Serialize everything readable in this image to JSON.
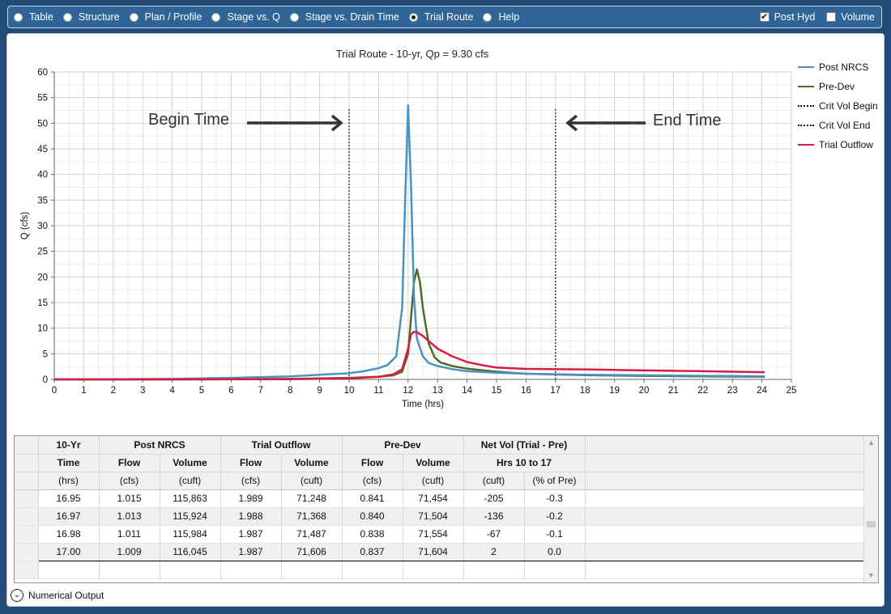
{
  "nav": {
    "radios": [
      {
        "label": "Table",
        "selected": false
      },
      {
        "label": "Structure",
        "selected": false
      },
      {
        "label": "Plan / Profile",
        "selected": false
      },
      {
        "label": "Stage vs. Q",
        "selected": false
      },
      {
        "label": "Stage vs. Drain Time",
        "selected": false
      },
      {
        "label": "Trial Route",
        "selected": true
      },
      {
        "label": "Help",
        "selected": false
      }
    ],
    "checks": [
      {
        "label": "Post Hyd",
        "checked": true
      },
      {
        "label": "Volume",
        "checked": false
      }
    ]
  },
  "annotations": {
    "begin": "Begin Time",
    "end": "End Time"
  },
  "chart_data": {
    "type": "line",
    "title": "Trial Route - 10-yr, Qp = 9.30 cfs",
    "xlabel": "Time (hrs)",
    "ylabel": "Q (cfs)",
    "xlim": [
      0,
      25
    ],
    "ylim": [
      0,
      60
    ],
    "xticks": [
      0,
      1,
      2,
      3,
      4,
      5,
      6,
      7,
      8,
      9,
      10,
      11,
      12,
      13,
      14,
      15,
      16,
      17,
      18,
      19,
      20,
      21,
      22,
      23,
      24,
      25
    ],
    "yticks": [
      0,
      5,
      10,
      15,
      20,
      25,
      30,
      35,
      40,
      45,
      50,
      55,
      60
    ],
    "grid": true,
    "legend_position": "right",
    "series": [
      {
        "name": "Post NRCS",
        "color": "#4b92c3",
        "style": "solid",
        "x": [
          0,
          2,
          4,
          6,
          8,
          9,
          10,
          10.5,
          11,
          11.3,
          11.6,
          11.8,
          11.9,
          12.0,
          12.1,
          12.2,
          12.3,
          12.5,
          12.7,
          13,
          13.5,
          14,
          15,
          16,
          18,
          20,
          22,
          24.1
        ],
        "y": [
          0,
          0.05,
          0.1,
          0.3,
          0.6,
          0.9,
          1.2,
          1.6,
          2.2,
          2.8,
          4.5,
          14,
          35,
          53.5,
          38,
          16,
          8,
          4.5,
          3.2,
          2.6,
          2.0,
          1.6,
          1.3,
          1.1,
          0.9,
          0.8,
          0.7,
          0.6
        ]
      },
      {
        "name": "Pre-Dev",
        "color": "#4f6a2a",
        "style": "solid",
        "x": [
          0,
          4,
          8,
          10,
          11,
          11.5,
          11.8,
          12.0,
          12.1,
          12.2,
          12.3,
          12.4,
          12.5,
          12.7,
          12.9,
          13.1,
          13.5,
          14,
          15,
          16,
          18,
          20,
          22,
          24.1
        ],
        "y": [
          0,
          0,
          0.1,
          0.3,
          0.5,
          0.8,
          1.5,
          5,
          12,
          19,
          21.5,
          19,
          14,
          7,
          4.3,
          3.3,
          2.6,
          2.1,
          1.5,
          1.1,
          0.84,
          0.7,
          0.6,
          0.5
        ]
      },
      {
        "name": "Crit Vol Begin",
        "color": "#111111",
        "style": "dotted",
        "x": [
          10,
          10
        ],
        "y": [
          0,
          53
        ]
      },
      {
        "name": "Crit Vol End",
        "color": "#111111",
        "style": "dotted",
        "x": [
          17,
          17
        ],
        "y": [
          0,
          53
        ]
      },
      {
        "name": "Trial Outflow",
        "color": "#d81b43",
        "style": "solid",
        "x": [
          0,
          4,
          8,
          10,
          11,
          11.5,
          11.8,
          12.0,
          12.1,
          12.2,
          12.3,
          12.5,
          12.8,
          13,
          13.5,
          14,
          14.5,
          15,
          16,
          17,
          18,
          19,
          20,
          22,
          24.1
        ],
        "y": [
          0,
          0,
          0.05,
          0.2,
          0.5,
          1.0,
          2.0,
          6,
          8.8,
          9.3,
          9.2,
          8.5,
          7,
          6,
          4.5,
          3.4,
          2.8,
          2.3,
          2.05,
          1.99,
          1.95,
          1.85,
          1.75,
          1.6,
          1.4
        ]
      }
    ]
  },
  "table": {
    "header_groups": [
      {
        "label": "10-Yr",
        "span": 1
      },
      {
        "label": "Post NRCS",
        "span": 2
      },
      {
        "label": "Trial Outflow",
        "span": 2
      },
      {
        "label": "Pre-Dev",
        "span": 2
      },
      {
        "label": "Net Vol (Trial - Pre)",
        "span": 2
      }
    ],
    "header_sub": [
      {
        "label": "Time",
        "span": 1
      },
      {
        "label": "Flow",
        "span": 1
      },
      {
        "label": "Volume",
        "span": 1
      },
      {
        "label": "Flow",
        "span": 1
      },
      {
        "label": "Volume",
        "span": 1
      },
      {
        "label": "Flow",
        "span": 1
      },
      {
        "label": "Volume",
        "span": 1
      },
      {
        "label": "Hrs 10 to 17",
        "span": 2
      }
    ],
    "units": [
      "(hrs)",
      "(cfs)",
      "(cuft)",
      "(cfs)",
      "(cuft)",
      "(cfs)",
      "(cuft)",
      "(cuft)",
      "(% of Pre)"
    ],
    "rows": [
      [
        "16.95",
        "1.015",
        "115,863",
        "1.989",
        "71,248",
        "0.841",
        "71,454",
        "-205",
        "-0.3"
      ],
      [
        "16.97",
        "1.013",
        "115,924",
        "1.988",
        "71,368",
        "0.840",
        "71,504",
        "-136",
        "-0.2"
      ],
      [
        "16.98",
        "1.011",
        "115,984",
        "1.987",
        "71,487",
        "0.838",
        "71,554",
        "-67",
        "-0.1"
      ],
      [
        "17.00",
        "1.009",
        "116,045",
        "1.987",
        "71,606",
        "0.837",
        "71,604",
        "2",
        "0.0"
      ]
    ],
    "selected_row": 3
  },
  "footer": {
    "label": "Numerical Output"
  }
}
